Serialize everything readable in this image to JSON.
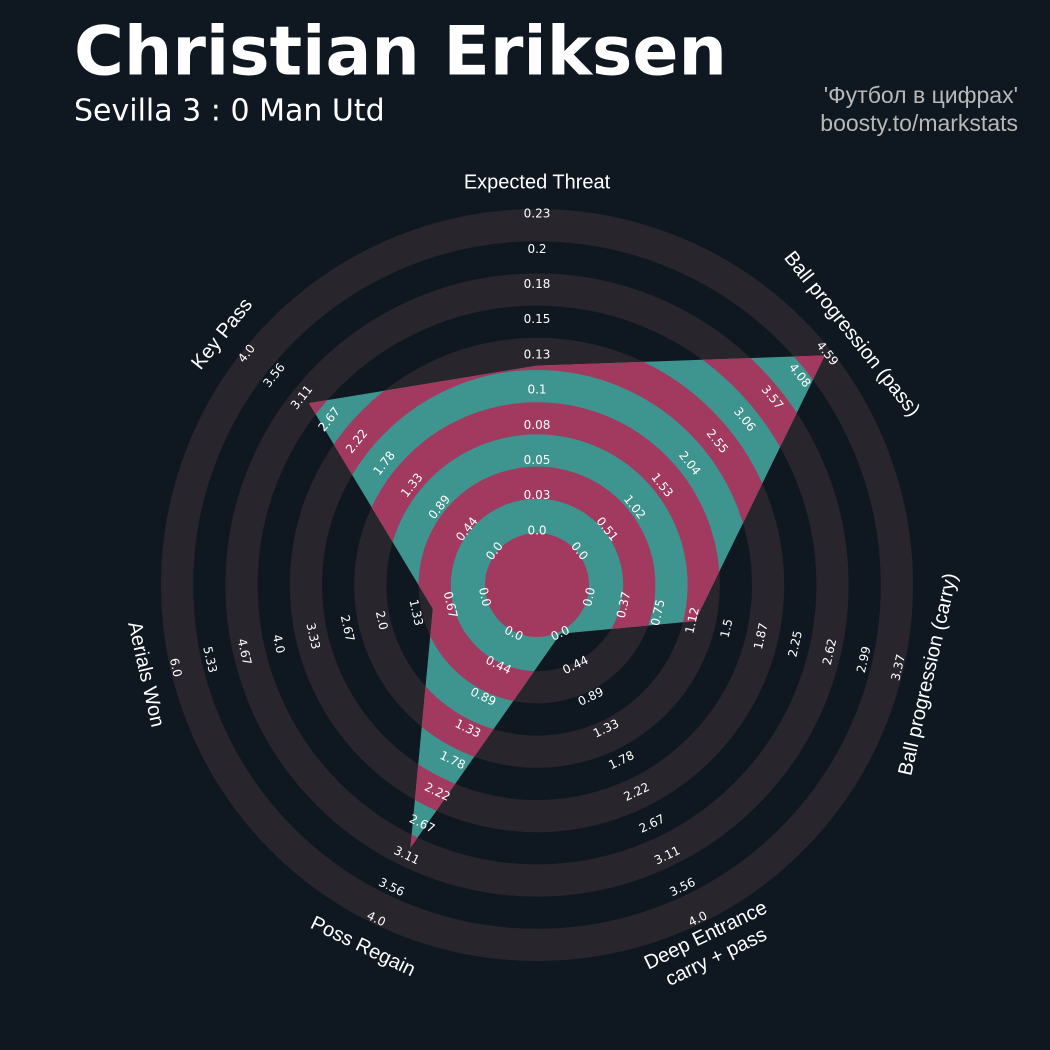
{
  "chart_data": {
    "type": "radar",
    "title": "Christian Eriksen",
    "subtitle": "Sevilla 3 : 0 Man Utd",
    "annotations": [
      "'Футбол в цифрах'",
      "boosty.to/markstats"
    ],
    "categories": [
      "Expected Threat",
      "Ball progression (pass)",
      "Ball progression (carry)",
      "Deep Entrance\ncarry + pass",
      "Poss Regain",
      "Aerials Won",
      "Key Pass"
    ],
    "values": [
      0.12,
      4.55,
      1.15,
      0.0,
      3.0,
      1.0,
      3.0
    ],
    "color": "#3e958f",
    "highlight_color": "#a23a5f",
    "ring_color": "#28252c",
    "axes": [
      {
        "lim": [
          0,
          0.23
        ],
        "ticks": [
          {
            "value": 0,
            "label": "0.0"
          },
          {
            "value": 0.0256,
            "label": "0.03"
          },
          {
            "value": 0.0511,
            "label": "0.05"
          },
          {
            "value": 0.0767,
            "label": "0.08"
          },
          {
            "value": 0.1022,
            "label": "0.1"
          },
          {
            "value": 0.1278,
            "label": "0.13"
          },
          {
            "value": 0.1533,
            "label": "0.15"
          },
          {
            "value": 0.1789,
            "label": "0.18"
          },
          {
            "value": 0.2044,
            "label": "0.2"
          },
          0.23
        ]
      },
      {
        "lim": [
          0,
          4.59
        ],
        "ticks": [
          {
            "value": 0,
            "label": "0.0"
          },
          0.51,
          1.02,
          1.53,
          2.04,
          2.55,
          3.06,
          3.57,
          4.08,
          4.59
        ]
      },
      {
        "lim": [
          0,
          3.37
        ],
        "ticks": [
          {
            "value": 0,
            "label": "0.0"
          },
          {
            "value": 0.3744,
            "label": "0.37"
          },
          {
            "value": 0.7488,
            "label": "0.75"
          },
          {
            "value": 1.1232,
            "label": "1.12"
          },
          {
            "value": 1.4976,
            "label": "1.5"
          },
          {
            "value": 1.872,
            "label": "1.87"
          },
          {
            "value": 2.2464,
            "label": "2.25"
          },
          {
            "value": 2.6208,
            "label": "2.62"
          },
          {
            "value": 2.994,
            "label": "2.99"
          },
          3.37
        ]
      },
      {
        "lim": [
          0,
          4
        ],
        "ticks": [
          {
            "value": 0,
            "label": "0.0"
          },
          {
            "value": 0.4444,
            "label": "0.44"
          },
          {
            "value": 0.8889,
            "label": "0.89"
          },
          {
            "value": 1.3333,
            "label": "1.33"
          },
          {
            "value": 1.7778,
            "label": "1.78"
          },
          {
            "value": 2.2222,
            "label": "2.22"
          },
          {
            "value": 2.6667,
            "label": "2.67"
          },
          {
            "value": 3.1111,
            "label": "3.11"
          },
          {
            "value": 3.5556,
            "label": "3.56"
          },
          {
            "value": 4,
            "label": "4.0"
          }
        ]
      },
      {
        "lim": [
          0,
          4
        ],
        "ticks": [
          {
            "value": 0,
            "label": "0.0"
          },
          {
            "value": 0.4444,
            "label": "0.44"
          },
          {
            "value": 0.8889,
            "label": "0.89"
          },
          {
            "value": 1.3333,
            "label": "1.33"
          },
          {
            "value": 1.7778,
            "label": "1.78"
          },
          {
            "value": 2.2222,
            "label": "2.22"
          },
          {
            "value": 2.6667,
            "label": "2.67"
          },
          {
            "value": 3.1111,
            "label": "3.11"
          },
          {
            "value": 3.5556,
            "label": "3.56"
          },
          {
            "value": 4,
            "label": "4.0"
          }
        ]
      },
      {
        "lim": [
          0,
          6
        ],
        "ticks": [
          {
            "value": 0,
            "label": "0.0"
          },
          {
            "value": 0.6667,
            "label": "0.67"
          },
          {
            "value": 1.3333,
            "label": "1.33"
          },
          {
            "value": 2,
            "label": "2.0"
          },
          {
            "value": 2.6667,
            "label": "2.67"
          },
          {
            "value": 3.3333,
            "label": "3.33"
          },
          {
            "value": 4,
            "label": "4.0"
          },
          {
            "value": 4.6667,
            "label": "4.67"
          },
          {
            "value": 5.3333,
            "label": "5.33"
          },
          {
            "value": 6,
            "label": "6.0"
          }
        ]
      },
      {
        "lim": [
          0,
          4
        ],
        "ticks": [
          {
            "value": 0,
            "label": "0.0"
          },
          {
            "value": 0.4444,
            "label": "0.44"
          },
          {
            "value": 0.8889,
            "label": "0.89"
          },
          {
            "value": 1.3333,
            "label": "1.33"
          },
          {
            "value": 1.7778,
            "label": "1.78"
          },
          {
            "value": 2.2222,
            "label": "2.22"
          },
          {
            "value": 2.6667,
            "label": "2.67"
          },
          {
            "value": 3.1111,
            "label": "3.11"
          },
          {
            "value": 3.5556,
            "label": "3.56"
          },
          {
            "value": 4,
            "label": "4.0"
          }
        ]
      }
    ]
  }
}
